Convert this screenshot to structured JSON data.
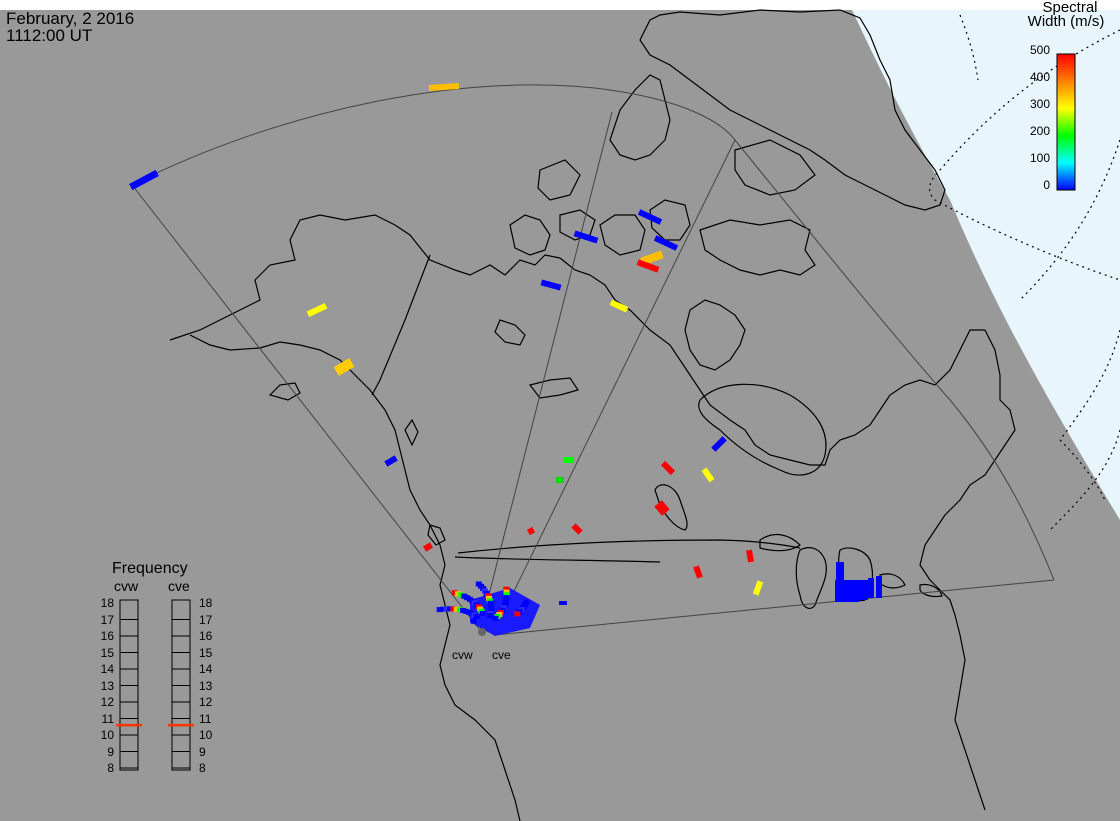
{
  "header": {
    "date": "February, 2 2016",
    "time": "1112:00 UT"
  },
  "colorbar": {
    "title_line1": "Spectral",
    "title_line2": "Width (m/s)",
    "ticks": [
      "500",
      "400",
      "300",
      "200",
      "100",
      "0"
    ],
    "min": 0,
    "max": 500,
    "colors": [
      "#0000ff",
      "#00ffff",
      "#00ff00",
      "#ffff00",
      "#ff8000",
      "#ff0000"
    ]
  },
  "frequency_panel": {
    "title": "Frequency",
    "radars": [
      {
        "label": "cvw",
        "value_mhz": 10.6
      },
      {
        "label": "cve",
        "value_mhz": 10.6
      }
    ],
    "scale": [
      "18",
      "17",
      "16",
      "15",
      "14",
      "13",
      "12",
      "11",
      "10",
      "9",
      "8"
    ]
  },
  "sites": [
    {
      "label": "cvw"
    },
    {
      "label": "cve"
    }
  ],
  "map": {
    "background_color": "#999999",
    "plot_region_color": "#e9f5fc",
    "coast_color": "#000000"
  },
  "scatter": [
    {
      "width": 440,
      "color": "#ffbf00"
    },
    {
      "width": 40,
      "color": "#0000ff"
    },
    {
      "width": 20,
      "color": "#0000ff"
    },
    {
      "width": 30,
      "color": "#0000ff"
    },
    {
      "width": 20,
      "color": "#0000ff"
    },
    {
      "width": 380,
      "color": "#ffbf00"
    },
    {
      "width": 480,
      "color": "#ff0000"
    },
    {
      "width": 30,
      "color": "#0000ff"
    },
    {
      "width": 340,
      "color": "#ffff00"
    },
    {
      "width": 330,
      "color": "#ffff00"
    },
    {
      "width": 360,
      "color": "#ffcc00"
    },
    {
      "width": 20,
      "color": "#0000ff"
    },
    {
      "width": 20,
      "color": "#0000ff"
    },
    {
      "width": 160,
      "color": "#00ff00"
    },
    {
      "width": 150,
      "color": "#00dd00"
    },
    {
      "width": 480,
      "color": "#ff0000"
    },
    {
      "width": 320,
      "color": "#ffff00"
    },
    {
      "width": 470,
      "color": "#ff0000"
    },
    {
      "width": 490,
      "color": "#ff0000"
    },
    {
      "width": 470,
      "color": "#ff0000"
    },
    {
      "width": 480,
      "color": "#ff0000"
    },
    {
      "width": 470,
      "color": "#ff0000"
    },
    {
      "width": 480,
      "color": "#ff0000"
    },
    {
      "width": 330,
      "color": "#ffff00"
    },
    {
      "width": 20,
      "color": "#0000ff"
    }
  ]
}
